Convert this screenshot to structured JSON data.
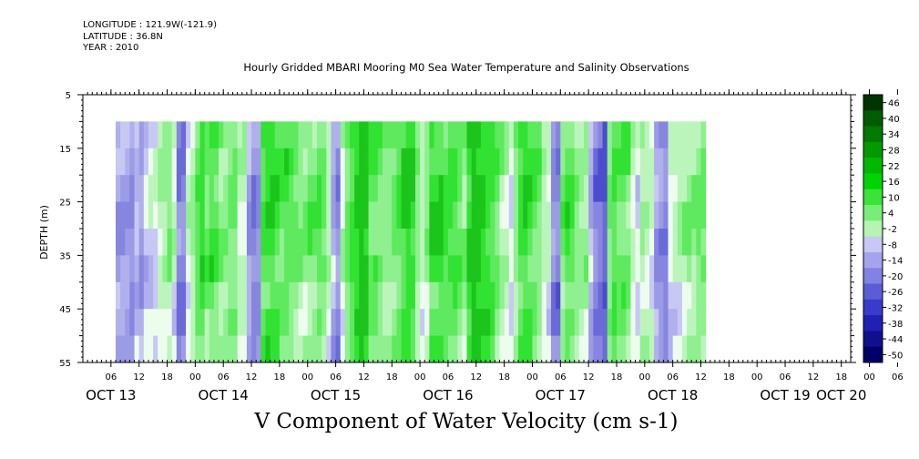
{
  "header": {
    "longitude": "LONGITUDE : 121.9W(-121.9)",
    "latitude": "LATITUDE : 36.8N",
    "year": "YEAR : 2010"
  },
  "colors": {
    "green_scale": [
      "#edfded",
      "#bcf5bc",
      "#8ef08e",
      "#5fe95f",
      "#32e232",
      "#1bc51b"
    ],
    "blue_scale": [
      "#c8c8f4",
      "#b0b0ec",
      "#9b9be6",
      "#8686e0",
      "#6a6ad8",
      "#4c4ccf"
    ]
  },
  "chart_data": {
    "type": "heatmap",
    "title": "Hourly Gridded MBARI Mooring M0 Sea Water Temperature and Salinity Observations",
    "xlabel": "V Component of Water Velocity (cm s-1)",
    "ylabel": "DEPTH (m)",
    "y_ticks": [
      5,
      15,
      25,
      35,
      45,
      55
    ],
    "y_range": [
      5,
      55
    ],
    "data_depth_range": [
      10,
      55
    ],
    "x_hour_ticks": [
      "06",
      "12",
      "18",
      "00",
      "06",
      "12",
      "18",
      "00",
      "06",
      "12",
      "18",
      "00",
      "06",
      "12",
      "18",
      "00",
      "06",
      "12",
      "18",
      "00",
      "06",
      "12",
      "18",
      "00",
      "06",
      "12",
      "18",
      "00",
      "06",
      "12",
      "18",
      "00"
    ],
    "date_labels": [
      "OCT 13",
      "OCT 14",
      "OCT 15",
      "OCT 16",
      "OCT 17",
      "OCT 18",
      "OCT 19",
      "OCT 20"
    ],
    "x_range_hours": [
      0,
      164
    ],
    "data_start_hour": 7,
    "colorbar_labels": [
      "46",
      "40",
      "34",
      "28",
      "22",
      "16",
      "10",
      "4",
      "-2",
      "-8",
      "-14",
      "-20",
      "-26",
      "-32",
      "-38",
      "-44",
      "-50"
    ],
    "v_columns": [
      -6,
      -6,
      -6,
      -8,
      -3,
      -6,
      -1,
      1,
      1,
      6,
      8,
      10,
      4,
      -10,
      -10,
      4,
      8,
      14,
      18,
      12,
      16,
      14,
      10,
      10,
      12,
      12,
      5,
      6,
      -6,
      -10,
      -8,
      16,
      18,
      18,
      16,
      14,
      16,
      14,
      12,
      10,
      10,
      12,
      12,
      14,
      12,
      6,
      -4,
      -8,
      5,
      12,
      16,
      20,
      24,
      22,
      14,
      14,
      12,
      10,
      10,
      12,
      14,
      18,
      20,
      18,
      10,
      5,
      10,
      18,
      18,
      18,
      16,
      16,
      16,
      14,
      10,
      20,
      24,
      22,
      20,
      18,
      16,
      12,
      8,
      6,
      0,
      10,
      16,
      18,
      16,
      14,
      12,
      6,
      4,
      -8,
      -10,
      12,
      16,
      14,
      10,
      8,
      8,
      -4,
      -10,
      -12,
      -14,
      12,
      16,
      14,
      14,
      12,
      4,
      0,
      8,
      6,
      4,
      -6,
      -8,
      -10,
      2,
      4,
      6,
      8,
      10,
      10,
      12,
      12
    ]
  }
}
